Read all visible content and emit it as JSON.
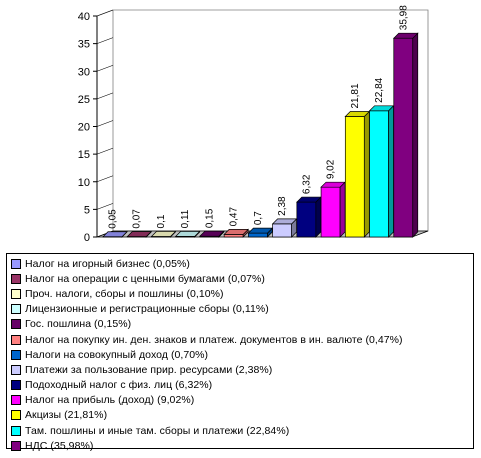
{
  "chart_data": {
    "type": "bar",
    "ylim": [
      0,
      40
    ],
    "yticks": [
      "0",
      "5",
      "10",
      "15",
      "20",
      "25",
      "30",
      "35",
      "40"
    ],
    "grid": false,
    "legend_position": "bottom",
    "series": [
      {
        "name": "Налог на игорный бизнес (0,05%)",
        "value": 0.05,
        "label": "0,05",
        "color": "#9999ff"
      },
      {
        "name": "Налог на операции с ценными бумагами (0,07%)",
        "value": 0.07,
        "label": "0,07",
        "color": "#993366"
      },
      {
        "name": "Проч. налоги, сборы и пошлины (0,10%)",
        "value": 0.1,
        "label": "0,1",
        "color": "#ffffcc"
      },
      {
        "name": "Лицензионные и регистрационные сборы (0,11%)",
        "value": 0.11,
        "label": "0,11",
        "color": "#ccffff"
      },
      {
        "name": "Гос. пошлина (0,15%)",
        "value": 0.15,
        "label": "0,15",
        "color": "#660066"
      },
      {
        "name": "Налог на покупку ин. ден. знаков и платеж. документов в ин. валюте (0,47%)",
        "value": 0.47,
        "label": "0,47",
        "color": "#ff8080"
      },
      {
        "name": "Налоги на совокупный доход (0,70%)",
        "value": 0.7,
        "label": "0,7",
        "color": "#0066cc"
      },
      {
        "name": "Платежи за пользование прир. ресурсами (2,38%)",
        "value": 2.38,
        "label": "2,38",
        "color": "#ccccff"
      },
      {
        "name": "Подоходный налог с физ. лиц (6,32%)",
        "value": 6.32,
        "label": "6,32",
        "color": "#000080"
      },
      {
        "name": "Налог на прибыль (доход) (9,02%)",
        "value": 9.02,
        "label": "9,02",
        "color": "#ff00ff"
      },
      {
        "name": "Акцизы (21,81%)",
        "value": 21.81,
        "label": "21,81",
        "color": "#ffff00"
      },
      {
        "name": "Там. пошлины и иные там. сборы и платежи (22,84%)",
        "value": 22.84,
        "label": "22,84",
        "color": "#00ffff"
      },
      {
        "name": "НДС (35,98%)",
        "value": 35.98,
        "label": "35,98",
        "color": "#800080"
      }
    ]
  }
}
